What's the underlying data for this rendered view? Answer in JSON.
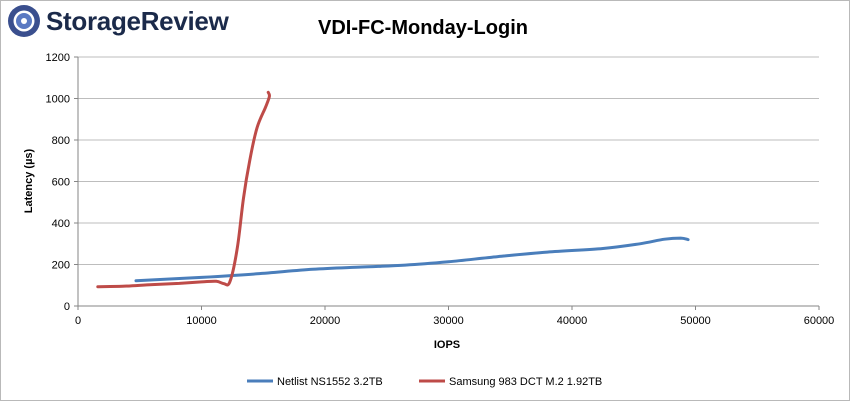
{
  "logo": {
    "text": "StorageReview",
    "colors": {
      "outer": "#3a4f8e",
      "inner": "#5a79c2",
      "wordmark": "#1b2a4a"
    }
  },
  "chart_data": {
    "type": "line",
    "title": "VDI-FC-Monday-Login",
    "xlabel": "IOPS",
    "ylabel": "Latency (µs)",
    "xlim": [
      0,
      60000
    ],
    "ylim": [
      0,
      1200
    ],
    "xticks": [
      0,
      10000,
      20000,
      30000,
      40000,
      50000,
      60000
    ],
    "yticks": [
      0,
      200,
      400,
      600,
      800,
      1000,
      1200
    ],
    "grid": "horizontal",
    "legend_position": "bottom",
    "series": [
      {
        "name": "Netlist NS1552 3.2TB",
        "color": "#4a7ebb",
        "points": [
          [
            4700,
            122
          ],
          [
            10000,
            138
          ],
          [
            14500,
            155
          ],
          [
            19000,
            177
          ],
          [
            23000,
            188
          ],
          [
            26500,
            197
          ],
          [
            30000,
            213
          ],
          [
            34000,
            238
          ],
          [
            38000,
            260
          ],
          [
            42500,
            277
          ],
          [
            45500,
            300
          ],
          [
            47500,
            322
          ],
          [
            48800,
            327
          ],
          [
            49400,
            320
          ]
        ]
      },
      {
        "name": "Samsung 983 DCT M.2 1.92TB",
        "color": "#be4b48",
        "points": [
          [
            1600,
            93
          ],
          [
            3600,
            95
          ],
          [
            6000,
            103
          ],
          [
            8200,
            109
          ],
          [
            10000,
            116
          ],
          [
            11200,
            119
          ],
          [
            11800,
            108
          ],
          [
            12300,
            117
          ],
          [
            12900,
            280
          ],
          [
            13400,
            520
          ],
          [
            13900,
            700
          ],
          [
            14500,
            860
          ],
          [
            15200,
            960
          ],
          [
            15500,
            1010
          ],
          [
            15400,
            1030
          ]
        ]
      }
    ]
  }
}
